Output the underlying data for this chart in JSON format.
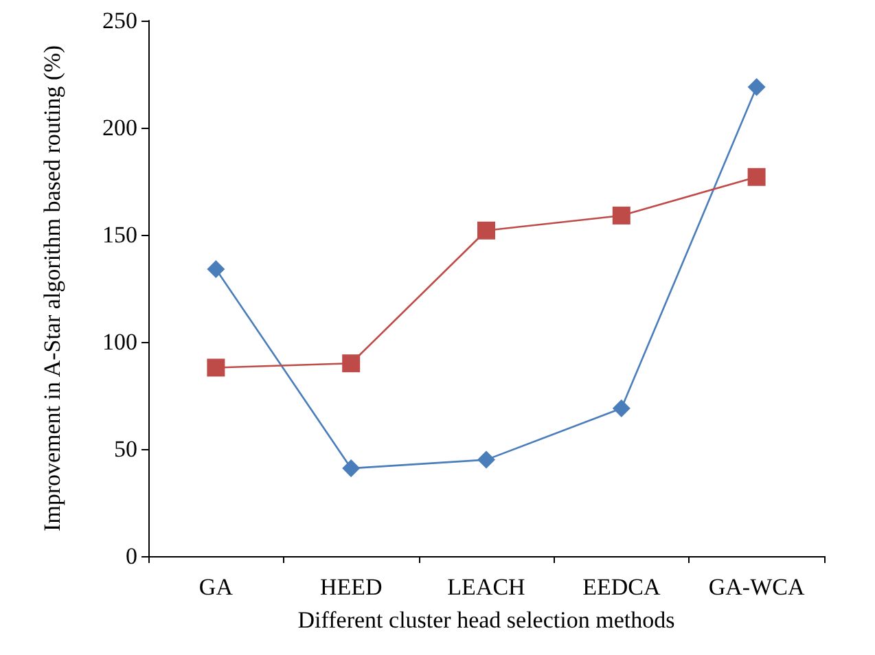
{
  "chart_data": {
    "type": "line",
    "xlabel": "Different cluster head selection methods",
    "ylabel": "Improvement in A-Star algorithm based routing (%)",
    "categories": [
      "GA",
      "HEED",
      "LEACH",
      "EEDCA",
      "GA-WCA"
    ],
    "series": [
      {
        "color": "#4a7ebb",
        "marker": "diamond",
        "values": [
          134,
          41,
          45,
          69,
          219
        ]
      },
      {
        "color": "#be4b48",
        "marker": "square",
        "values": [
          88,
          90,
          152,
          159,
          177
        ]
      }
    ],
    "ylim": [
      0,
      250
    ],
    "yticks": [
      0,
      50,
      100,
      150,
      200,
      250
    ],
    "grid": false,
    "line_style": "solid"
  }
}
